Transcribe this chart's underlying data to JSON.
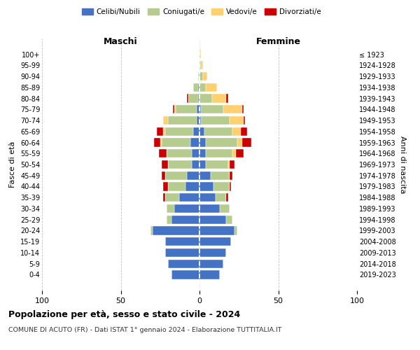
{
  "age_groups": [
    "0-4",
    "5-9",
    "10-14",
    "15-19",
    "20-24",
    "25-29",
    "30-34",
    "35-39",
    "40-44",
    "45-49",
    "50-54",
    "55-59",
    "60-64",
    "65-69",
    "70-74",
    "75-79",
    "80-84",
    "85-89",
    "90-94",
    "95-99",
    "100+"
  ],
  "birth_years": [
    "2019-2023",
    "2014-2018",
    "2009-2013",
    "2004-2008",
    "1999-2003",
    "1994-1998",
    "1989-1993",
    "1984-1988",
    "1979-1983",
    "1974-1978",
    "1969-1973",
    "1964-1968",
    "1959-1963",
    "1954-1958",
    "1949-1953",
    "1944-1948",
    "1939-1943",
    "1934-1938",
    "1929-1933",
    "1924-1928",
    "≤ 1923"
  ],
  "colors": {
    "celibi": "#4472C4",
    "coniugati": "#b5cc8e",
    "vedovi": "#FFD070",
    "divorziati": "#CC0000"
  },
  "maschi": {
    "celibi": [
      18,
      20,
      22,
      22,
      30,
      18,
      16,
      13,
      9,
      8,
      5,
      5,
      6,
      4,
      2,
      2,
      1,
      1,
      0,
      0,
      0
    ],
    "coniugati": [
      0,
      0,
      0,
      0,
      1,
      3,
      5,
      9,
      11,
      14,
      15,
      16,
      18,
      18,
      18,
      13,
      6,
      3,
      1,
      0,
      0
    ],
    "vedovi": [
      0,
      0,
      0,
      0,
      0,
      0,
      0,
      0,
      0,
      0,
      0,
      0,
      1,
      1,
      3,
      1,
      0,
      0,
      0,
      0,
      0
    ],
    "divorziati": [
      0,
      0,
      0,
      0,
      0,
      0,
      0,
      1,
      3,
      2,
      4,
      5,
      4,
      4,
      0,
      1,
      1,
      0,
      0,
      0,
      0
    ]
  },
  "femmine": {
    "celibi": [
      13,
      15,
      17,
      20,
      22,
      17,
      13,
      10,
      9,
      7,
      4,
      4,
      4,
      3,
      1,
      1,
      0,
      0,
      0,
      0,
      0
    ],
    "coniugati": [
      0,
      0,
      0,
      0,
      2,
      4,
      6,
      7,
      10,
      12,
      14,
      17,
      20,
      18,
      18,
      14,
      8,
      4,
      2,
      1,
      0
    ],
    "vedovi": [
      0,
      0,
      0,
      0,
      0,
      0,
      0,
      0,
      0,
      0,
      1,
      2,
      3,
      5,
      9,
      12,
      9,
      7,
      3,
      1,
      1
    ],
    "divorziati": [
      0,
      0,
      0,
      0,
      0,
      0,
      0,
      1,
      1,
      2,
      3,
      5,
      6,
      4,
      1,
      1,
      1,
      0,
      0,
      0,
      0
    ]
  },
  "xlim": [
    -100,
    100
  ],
  "xticks": [
    -100,
    -50,
    0,
    50,
    100
  ],
  "xticklabels": [
    "100",
    "50",
    "0",
    "50",
    "100"
  ],
  "title": "Popolazione per età, sesso e stato civile - 2024",
  "subtitle": "COMUNE DI ACUTO (FR) - Dati ISTAT 1° gennaio 2024 - Elaborazione TUTTITALIA.IT",
  "ylabel_left": "Fasce di età",
  "ylabel_right": "Anni di nascita",
  "header_maschi": "Maschi",
  "header_femmine": "Femmine",
  "bg_color": "#ffffff",
  "grid_color": "#bbbbbb"
}
